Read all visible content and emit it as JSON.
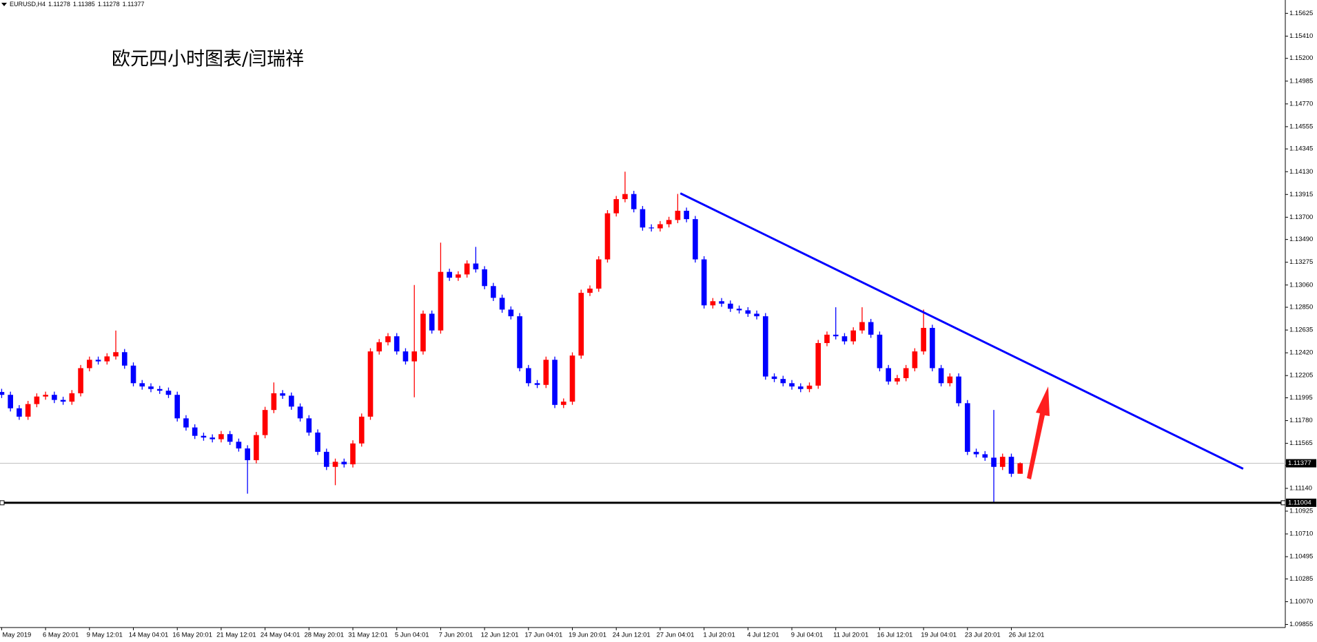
{
  "chart_data": {
    "type": "candlestick",
    "symbol": "EURUSD,H4",
    "title": "欧元四小时图表/闫瑞祥",
    "up_color": "#ff0000",
    "down_color": "#0000ff",
    "categories": [
      "May 2019",
      null,
      null,
      null,
      null,
      "6 May 20:01",
      null,
      null,
      null,
      null,
      "9 May 12:01",
      null,
      null,
      null,
      null,
      "14 May 04:01",
      null,
      null,
      null,
      null,
      "16 May 20:01",
      null,
      null,
      null,
      null,
      "21 May 12:01",
      null,
      null,
      null,
      null,
      "24 May 04:01",
      null,
      null,
      null,
      null,
      "28 May 20:01",
      null,
      null,
      null,
      null,
      "31 May 12:01",
      null,
      null,
      null,
      null,
      "5 Jun 04:01",
      null,
      null,
      null,
      null,
      "7 Jun 20:01",
      null,
      null,
      null,
      null,
      "12 Jun 12:01",
      null,
      null,
      null,
      null,
      "17 Jun 04:01",
      null,
      null,
      null,
      null,
      "19 Jun 20:01",
      null,
      null,
      null,
      null,
      "24 Jun 12:01",
      null,
      null,
      null,
      null,
      "27 Jun 04:01",
      null,
      null,
      null,
      null,
      "1 Jul 20:01",
      null,
      null,
      null,
      null,
      "4 Jul 12:01",
      null,
      null,
      null,
      null,
      "9 Jul 04:01",
      null,
      null,
      null,
      null,
      "11 Jul 20:01",
      null,
      null,
      null,
      null,
      "16 Jul 12:01",
      null,
      null,
      null,
      null,
      "19 Jul 04:01",
      null,
      null,
      null,
      null,
      "23 Jul 20:01",
      null,
      null,
      null,
      null,
      "26 Jul 12:01",
      null
    ],
    "open": [
      1.1205,
      1.12023,
      1.11896,
      1.11817,
      1.11936,
      1.12007,
      1.12023,
      1.11975,
      1.11959,
      1.12038,
      1.12275,
      1.12354,
      1.12339,
      1.12386,
      1.12426,
      1.12299,
      1.12133,
      1.12102,
      1.12078,
      1.12062,
      1.12023,
      1.11801,
      1.11715,
      1.11636,
      1.1162,
      1.11604,
      1.11652,
      1.1158,
      1.11517,
      1.11406,
      1.11643,
      1.1188,
      1.12038,
      1.12015,
      1.11912,
      1.11801,
      1.11667,
      1.11485,
      1.11343,
      1.11391,
      1.11367,
      1.11564,
      1.11817,
      1.12433,
      1.1252,
      1.12576,
      1.12433,
      1.12339,
      1.12433,
      1.12789,
      1.12631,
      1.13184,
      1.13129,
      1.1316,
      1.13263,
      1.13208,
      1.1305,
      1.12939,
      1.12828,
      1.12765,
      1.12275,
      1.12133,
      1.12117,
      1.12354,
      1.11928,
      1.11959,
      1.12394,
      1.12986,
      1.13026,
      1.13302,
      1.13737,
      1.13871,
      1.13919,
      1.13776,
      1.13603,
      1.13595,
      1.13634,
      1.13674,
      1.13761,
      1.13682,
      1.13302,
      1.12868,
      1.12907,
      1.12884,
      1.12836,
      1.12821,
      1.12789,
      1.12765,
      1.12196,
      1.12173,
      1.12133,
      1.12102,
      1.12078,
      1.1211,
      1.12512,
      1.12591,
      1.12576,
      1.12528,
      1.12631,
      1.1271,
      1.12591,
      1.12275,
      1.12149,
      1.12181,
      1.12275,
      1.12433,
      1.12655,
      1.12275,
      1.12133,
      1.12196,
      1.11944,
      1.11485,
      1.11462,
      1.1143,
      1.11343,
      1.11438,
      1.11278
    ],
    "high": [
      1.1208,
      1.12053,
      1.11926,
      1.11966,
      1.12037,
      1.12053,
      1.12053,
      1.12005,
      1.12068,
      1.12305,
      1.12384,
      1.12384,
      1.12416,
      1.1263,
      1.12456,
      1.12329,
      1.12163,
      1.12132,
      1.12108,
      1.12092,
      1.12053,
      1.11831,
      1.11745,
      1.11666,
      1.1165,
      1.11682,
      1.11682,
      1.1161,
      1.11547,
      1.11673,
      1.1191,
      1.1214,
      1.12068,
      1.12045,
      1.11942,
      1.11831,
      1.11697,
      1.11515,
      1.11421,
      1.11421,
      1.11594,
      1.11847,
      1.12463,
      1.1255,
      1.12606,
      1.12606,
      1.12463,
      1.1306,
      1.12819,
      1.12819,
      1.1346,
      1.13214,
      1.1319,
      1.13293,
      1.1342,
      1.13238,
      1.1308,
      1.12969,
      1.12858,
      1.12795,
      1.12305,
      1.12163,
      1.12384,
      1.12384,
      1.11989,
      1.12424,
      1.13016,
      1.13056,
      1.13332,
      1.13767,
      1.13901,
      1.1413,
      1.13949,
      1.13806,
      1.13633,
      1.13664,
      1.13704,
      1.1392,
      1.13791,
      1.13712,
      1.13332,
      1.12937,
      1.12937,
      1.12914,
      1.12866,
      1.12851,
      1.12819,
      1.12795,
      1.12226,
      1.12203,
      1.12163,
      1.12132,
      1.1214,
      1.12542,
      1.12621,
      1.1285,
      1.12606,
      1.12661,
      1.1285,
      1.1274,
      1.12621,
      1.12305,
      1.12211,
      1.12305,
      1.12463,
      1.12828,
      1.12685,
      1.12305,
      1.12226,
      1.12226,
      1.11974,
      1.11515,
      1.11492,
      1.1188,
      1.11468,
      1.11468,
      1.11385
    ],
    "low": [
      1.11993,
      1.11866,
      1.11787,
      1.11787,
      1.11906,
      1.11977,
      1.11945,
      1.11929,
      1.11929,
      1.12008,
      1.12245,
      1.12309,
      1.12309,
      1.12356,
      1.12269,
      1.12103,
      1.12072,
      1.12048,
      1.12032,
      1.11993,
      1.11771,
      1.11685,
      1.11606,
      1.1159,
      1.11574,
      1.11574,
      1.1155,
      1.11487,
      1.1109,
      1.11376,
      1.11613,
      1.1185,
      1.11985,
      1.11882,
      1.11771,
      1.11637,
      1.11455,
      1.11313,
      1.1117,
      1.11337,
      1.11337,
      1.11534,
      1.11787,
      1.12403,
      1.1249,
      1.12403,
      1.12309,
      1.12,
      1.12403,
      1.12601,
      1.12601,
      1.13099,
      1.13099,
      1.1313,
      1.13178,
      1.1302,
      1.12909,
      1.12798,
      1.12735,
      1.12245,
      1.12103,
      1.12087,
      1.12087,
      1.11898,
      1.11898,
      1.11929,
      1.12364,
      1.12956,
      1.12996,
      1.13272,
      1.13707,
      1.13841,
      1.13746,
      1.13573,
      1.13565,
      1.13565,
      1.13604,
      1.13644,
      1.13652,
      1.13272,
      1.12838,
      1.12838,
      1.12854,
      1.12806,
      1.12791,
      1.12759,
      1.12735,
      1.12166,
      1.12143,
      1.12103,
      1.12072,
      1.12048,
      1.12048,
      1.1208,
      1.12482,
      1.12546,
      1.12498,
      1.12498,
      1.12601,
      1.12561,
      1.12245,
      1.12119,
      1.12119,
      1.12151,
      1.12245,
      1.12403,
      1.12245,
      1.12103,
      1.12103,
      1.11914,
      1.11455,
      1.11432,
      1.114,
      1.11004,
      1.11313,
      1.11248,
      1.11278
    ],
    "close": [
      1.12023,
      1.11896,
      1.11817,
      1.11936,
      1.12007,
      1.12023,
      1.11975,
      1.11959,
      1.12038,
      1.12275,
      1.12354,
      1.12339,
      1.12386,
      1.12426,
      1.12299,
      1.12133,
      1.12102,
      1.12078,
      1.12062,
      1.12023,
      1.11801,
      1.11715,
      1.11636,
      1.1162,
      1.11604,
      1.11652,
      1.1158,
      1.11517,
      1.11406,
      1.11643,
      1.1188,
      1.12038,
      1.12015,
      1.11912,
      1.11801,
      1.11667,
      1.11485,
      1.11343,
      1.11391,
      1.11367,
      1.11564,
      1.11817,
      1.12433,
      1.1252,
      1.12576,
      1.12433,
      1.12339,
      1.12433,
      1.12789,
      1.12631,
      1.13184,
      1.13129,
      1.1316,
      1.13263,
      1.13208,
      1.1305,
      1.12939,
      1.12828,
      1.12765,
      1.12275,
      1.12133,
      1.12117,
      1.12354,
      1.11928,
      1.11959,
      1.12394,
      1.12986,
      1.13026,
      1.13302,
      1.13737,
      1.13871,
      1.13919,
      1.13776,
      1.13603,
      1.13595,
      1.13634,
      1.13674,
      1.13761,
      1.13682,
      1.13302,
      1.12868,
      1.12907,
      1.12884,
      1.12836,
      1.12821,
      1.12789,
      1.12765,
      1.12196,
      1.12173,
      1.12133,
      1.12102,
      1.12078,
      1.1211,
      1.12512,
      1.12591,
      1.12576,
      1.12528,
      1.12631,
      1.1271,
      1.12591,
      1.12275,
      1.12149,
      1.12181,
      1.12275,
      1.12433,
      1.12655,
      1.12275,
      1.12133,
      1.12196,
      1.11944,
      1.11485,
      1.11462,
      1.1143,
      1.11343,
      1.11438,
      1.11278,
      1.11377
    ],
    "xlim": [
      -0.19,
      146.2
    ],
    "ylim": [
      1.09826,
      1.15751
    ],
    "yticks": [
      1.09855,
      {
        "value": 1.1007,
        "label": "1.10070"
      },
      1.10285,
      1.10495,
      {
        "value": 1.1071,
        "label": "1.10710"
      },
      1.10925,
      {
        "value": 1.1114,
        "label": "1.11140"
      },
      1.11355,
      1.11565,
      {
        "value": 1.1178,
        "label": "1.11780"
      },
      1.11995,
      1.12205,
      {
        "value": 1.1242,
        "label": "1.12420"
      },
      1.12635,
      {
        "value": 1.1285,
        "label": "1.12850"
      },
      {
        "value": 1.1306,
        "label": "1.13060"
      },
      1.13275,
      {
        "value": 1.1349,
        "label": "1.13490"
      },
      {
        "value": 1.137,
        "label": "1.13700"
      },
      1.13915,
      {
        "value": 1.1413,
        "label": "1.14130"
      },
      1.14345,
      1.14555,
      {
        "value": 1.1477,
        "label": "1.14770"
      },
      1.14985,
      {
        "value": 1.152,
        "label": "1.15200"
      },
      {
        "value": 1.1541,
        "label": "1.15410"
      },
      1.15625
    ],
    "level": 1.11004,
    "level_color": "#000000",
    "price_line_color": "#c0c0c0",
    "trendline": {
      "color": "#0000ff",
      "x": [
        77.3,
        141.4
      ],
      "y": [
        1.13926,
        1.11325
      ]
    }
  }
}
